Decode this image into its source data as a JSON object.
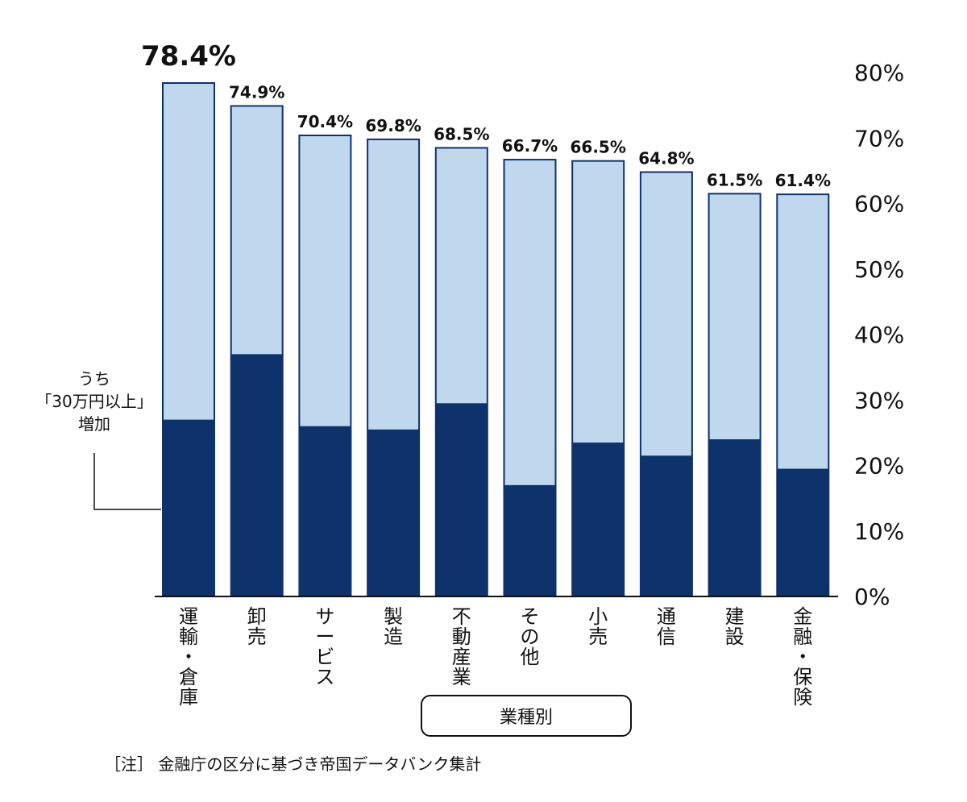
{
  "chart_data": {
    "type": "bar",
    "categories": [
      "運輸・倉庫",
      "卸売",
      "サービス",
      "製造",
      "不動産業",
      "その他",
      "小売",
      "通信",
      "建設",
      "金融・保険"
    ],
    "category_lines": [
      [
        "運",
        "輸",
        "・",
        "倉",
        "庫"
      ],
      [
        "卸",
        "売"
      ],
      [
        "サ",
        "ー",
        "ビ",
        "ス"
      ],
      [
        "製",
        "造"
      ],
      [
        "不",
        "動",
        "産",
        "業"
      ],
      [
        "そ",
        "の",
        "他"
      ],
      [
        "小",
        "売"
      ],
      [
        "通",
        "信"
      ],
      [
        "建",
        "設"
      ],
      [
        "金",
        "融",
        "・",
        "保",
        "険"
      ]
    ],
    "series": [
      {
        "values": [
          78.4,
          74.9,
          70.4,
          69.8,
          68.5,
          66.7,
          66.5,
          64.8,
          61.5,
          61.4
        ],
        "color": "#bfd8ee"
      },
      {
        "name": "うち「30万円以上」増加",
        "values": [
          27,
          37,
          26,
          25.5,
          29.5,
          17,
          23.5,
          21.5,
          24,
          19.5
        ],
        "color": "#0e326b"
      }
    ],
    "value_labels": [
      "78.4%",
      "74.9%",
      "70.4%",
      "69.8%",
      "68.5%",
      "66.7%",
      "66.5%",
      "64.8%",
      "61.5%",
      "61.4%"
    ],
    "ylim": [
      0,
      80
    ],
    "y_ticks": [
      "0%",
      "10%",
      "20%",
      "30%",
      "40%",
      "50%",
      "60%",
      "70%",
      "80%"
    ],
    "y_axis_position": "right",
    "xlabel": "業種別",
    "grid": false
  },
  "callout": {
    "lines": [
      "うち",
      "「30万円以上」",
      "増加"
    ]
  },
  "note": "［注］ 金融庁の区分に基づき帝国データバンク集計",
  "colors": {
    "light_bar": "#bfd8ee",
    "dark_bar": "#0e326b",
    "outline": "#0e326b"
  }
}
